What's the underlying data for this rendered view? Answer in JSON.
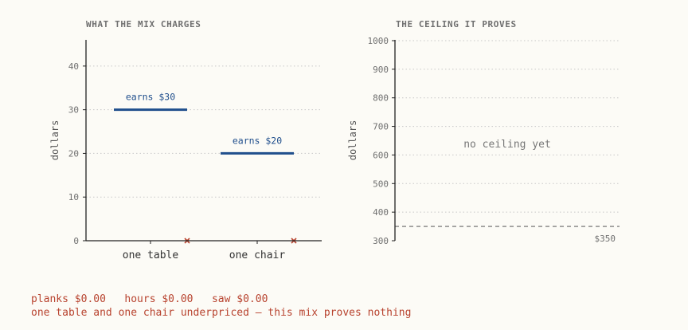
{
  "chart_data": [
    {
      "type": "bar",
      "title": "WHAT THE MIX CHARGES",
      "ylabel": "dollars",
      "ylim": [
        0,
        46
      ],
      "yticks": [
        0,
        10,
        20,
        30,
        40
      ],
      "grid": true,
      "categories": [
        "one table",
        "one chair"
      ],
      "series": [
        {
          "values": [
            30,
            20
          ],
          "labels": [
            "earns $30",
            "earns $20"
          ],
          "color": "#1f4e8c"
        },
        {
          "values": [
            0,
            0
          ],
          "color": "#b8432f"
        }
      ]
    },
    {
      "type": "line",
      "title": "THE CEILING IT PROVES",
      "ylabel": "dollars",
      "ylim": [
        300,
        1000
      ],
      "yticks": [
        300,
        400,
        500,
        600,
        700,
        800,
        900,
        1000
      ],
      "grid": true,
      "annotation": "no ceiling yet",
      "reference_line": {
        "value": 350,
        "label": "$350",
        "color": "#666666"
      }
    }
  ],
  "footer": {
    "prices_line": "planks $0.00   hours $0.00   saw $0.00",
    "status_line": "one table and one chair underpriced — this mix proves nothing"
  }
}
